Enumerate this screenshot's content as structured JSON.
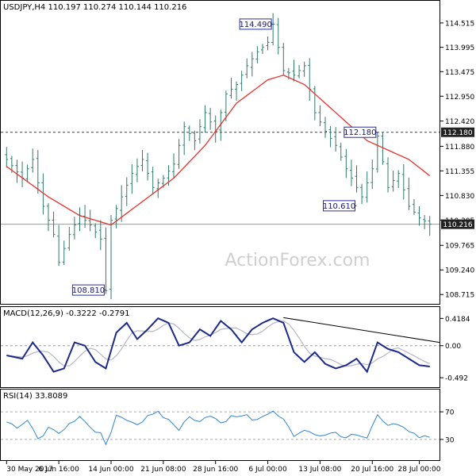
{
  "chart_data": [
    {
      "type": "ohlc",
      "title": "USDJPY,H4  110.197 110.274 110.144 110.216",
      "watermark": "ActionForex.com",
      "y_ticks": [
        "114.515",
        "113.995",
        "113.475",
        "112.950",
        "112.420",
        "111.880",
        "111.355",
        "110.830",
        "110.305",
        "109.765",
        "109.240",
        "108.715"
      ],
      "ylim": [
        108.6,
        114.7
      ],
      "x_ticks": [
        "30 May 2017",
        "6 Jun 16:00",
        "14 Jun 00:00",
        "21 Jun 08:00",
        "28 Jun 16:00",
        "6 Jul 00:00",
        "13 Jul 08:00",
        "20 Jul 16:00",
        "28 Jul 00:00"
      ],
      "x_tick_index": [
        0,
        10,
        20,
        30,
        40,
        50,
        60,
        70,
        79
      ],
      "bar_count": 82,
      "close_anchors": [
        [
          0,
          111.6
        ],
        [
          3,
          111.2
        ],
        [
          5,
          111.6
        ],
        [
          7,
          110.6
        ],
        [
          9,
          110.0
        ],
        [
          10,
          109.4
        ],
        [
          12,
          110.0
        ],
        [
          14,
          110.4
        ],
        [
          16,
          110.2
        ],
        [
          18,
          109.9
        ],
        [
          19,
          108.8
        ],
        [
          20,
          110.3
        ],
        [
          22,
          110.8
        ],
        [
          24,
          111.3
        ],
        [
          26,
          111.6
        ],
        [
          28,
          111.0
        ],
        [
          30,
          111.2
        ],
        [
          32,
          111.5
        ],
        [
          34,
          112.3
        ],
        [
          36,
          112.0
        ],
        [
          38,
          112.6
        ],
        [
          40,
          112.2
        ],
        [
          42,
          113.0
        ],
        [
          44,
          113.2
        ],
        [
          46,
          113.6
        ],
        [
          48,
          113.9
        ],
        [
          50,
          114.1
        ],
        [
          51,
          114.49
        ],
        [
          53,
          113.5
        ],
        [
          55,
          113.4
        ],
        [
          57,
          113.6
        ],
        [
          59,
          112.6
        ],
        [
          61,
          112.2
        ],
        [
          63,
          111.9
        ],
        [
          65,
          111.4
        ],
        [
          67,
          111.0
        ],
        [
          68,
          110.8
        ],
        [
          70,
          111.4
        ],
        [
          71,
          112.1
        ],
        [
          73,
          111.0
        ],
        [
          75,
          111.3
        ],
        [
          77,
          110.6
        ],
        [
          79,
          110.35
        ],
        [
          81,
          110.216
        ]
      ],
      "ma_anchors": [
        [
          0,
          111.45
        ],
        [
          8,
          110.8
        ],
        [
          14,
          110.4
        ],
        [
          20,
          110.2
        ],
        [
          26,
          110.7
        ],
        [
          32,
          111.2
        ],
        [
          38,
          111.9
        ],
        [
          44,
          112.8
        ],
        [
          50,
          113.3
        ],
        [
          53,
          113.4
        ],
        [
          57,
          113.2
        ],
        [
          61,
          112.8
        ],
        [
          65,
          112.4
        ],
        [
          69,
          112.0
        ],
        [
          73,
          111.8
        ],
        [
          77,
          111.6
        ],
        [
          81,
          111.25
        ]
      ],
      "annotations": [
        {
          "label": "114.490",
          "bar": 51,
          "price": 114.49,
          "side": "left"
        },
        {
          "label": "108.810",
          "bar": 19,
          "price": 108.81,
          "side": "left"
        },
        {
          "label": "110.610",
          "bar": 67,
          "price": 110.61,
          "side": "left"
        },
        {
          "label": "112.180",
          "bar": 71,
          "price": 112.18,
          "side": "left"
        }
      ],
      "hlines": [
        {
          "value": 112.18,
          "label": "112.180",
          "style": "dashed"
        },
        {
          "value": 110.216,
          "label": "110.216",
          "style": "solid"
        }
      ],
      "colors": {
        "bars": "#2f7a6e",
        "ma": "#e8302c",
        "annotation_border": "#2a2f9a",
        "tag_bg": "#222222"
      }
    },
    {
      "type": "line",
      "title": "MACD(12,26,9) -0.3222 -0.2791",
      "y_ticks": [
        "0.4184",
        "0.00",
        "-0.492"
      ],
      "ylim": [
        -0.6,
        0.52
      ],
      "macd_anchors": [
        [
          0,
          -0.15
        ],
        [
          3,
          -0.2
        ],
        [
          5,
          0.05
        ],
        [
          7,
          -0.15
        ],
        [
          9,
          -0.4
        ],
        [
          11,
          -0.35
        ],
        [
          13,
          0.05
        ],
        [
          15,
          0.0
        ],
        [
          17,
          -0.25
        ],
        [
          19,
          -0.35
        ],
        [
          21,
          0.2
        ],
        [
          23,
          0.35
        ],
        [
          25,
          0.1
        ],
        [
          27,
          0.25
        ],
        [
          29,
          0.42
        ],
        [
          31,
          0.35
        ],
        [
          33,
          0.0
        ],
        [
          35,
          0.05
        ],
        [
          37,
          0.25
        ],
        [
          39,
          0.15
        ],
        [
          41,
          0.38
        ],
        [
          43,
          0.25
        ],
        [
          45,
          0.05
        ],
        [
          47,
          0.25
        ],
        [
          49,
          0.35
        ],
        [
          51,
          0.42
        ],
        [
          53,
          0.35
        ],
        [
          55,
          -0.1
        ],
        [
          57,
          -0.25
        ],
        [
          59,
          -0.1
        ],
        [
          61,
          -0.28
        ],
        [
          63,
          -0.35
        ],
        [
          65,
          -0.3
        ],
        [
          67,
          -0.2
        ],
        [
          69,
          -0.4
        ],
        [
          71,
          0.05
        ],
        [
          73,
          -0.05
        ],
        [
          75,
          -0.1
        ],
        [
          77,
          -0.2
        ],
        [
          79,
          -0.3
        ],
        [
          81,
          -0.32
        ]
      ],
      "signal_lag": 2,
      "trendline": [
        [
          53,
          0.43
        ],
        [
          81,
          0.05
        ]
      ],
      "colors": {
        "macd": "#1c2a8c",
        "signal": "#b5b5c8",
        "trend": "#000000"
      }
    },
    {
      "type": "line",
      "title": "RSI(14) 33.8089",
      "y_ticks": [
        "70",
        "30"
      ],
      "ylim": [
        0,
        100
      ],
      "rsi_anchors": [
        [
          0,
          55
        ],
        [
          2,
          45
        ],
        [
          4,
          58
        ],
        [
          6,
          30
        ],
        [
          8,
          45
        ],
        [
          10,
          38
        ],
        [
          12,
          55
        ],
        [
          14,
          62
        ],
        [
          16,
          45
        ],
        [
          18,
          38
        ],
        [
          19,
          20
        ],
        [
          21,
          65
        ],
        [
          23,
          60
        ],
        [
          25,
          52
        ],
        [
          27,
          62
        ],
        [
          29,
          68
        ],
        [
          31,
          58
        ],
        [
          33,
          45
        ],
        [
          35,
          62
        ],
        [
          37,
          58
        ],
        [
          39,
          66
        ],
        [
          41,
          52
        ],
        [
          43,
          62
        ],
        [
          45,
          66
        ],
        [
          47,
          60
        ],
        [
          49,
          62
        ],
        [
          51,
          70
        ],
        [
          53,
          58
        ],
        [
          55,
          35
        ],
        [
          57,
          45
        ],
        [
          59,
          38
        ],
        [
          61,
          35
        ],
        [
          63,
          40
        ],
        [
          65,
          33
        ],
        [
          67,
          36
        ],
        [
          69,
          30
        ],
        [
          71,
          65
        ],
        [
          73,
          48
        ],
        [
          75,
          52
        ],
        [
          77,
          40
        ],
        [
          79,
          35
        ],
        [
          81,
          34
        ]
      ],
      "colors": {
        "rsi": "#2f86d6",
        "levels": "#aaaaaa"
      }
    }
  ]
}
